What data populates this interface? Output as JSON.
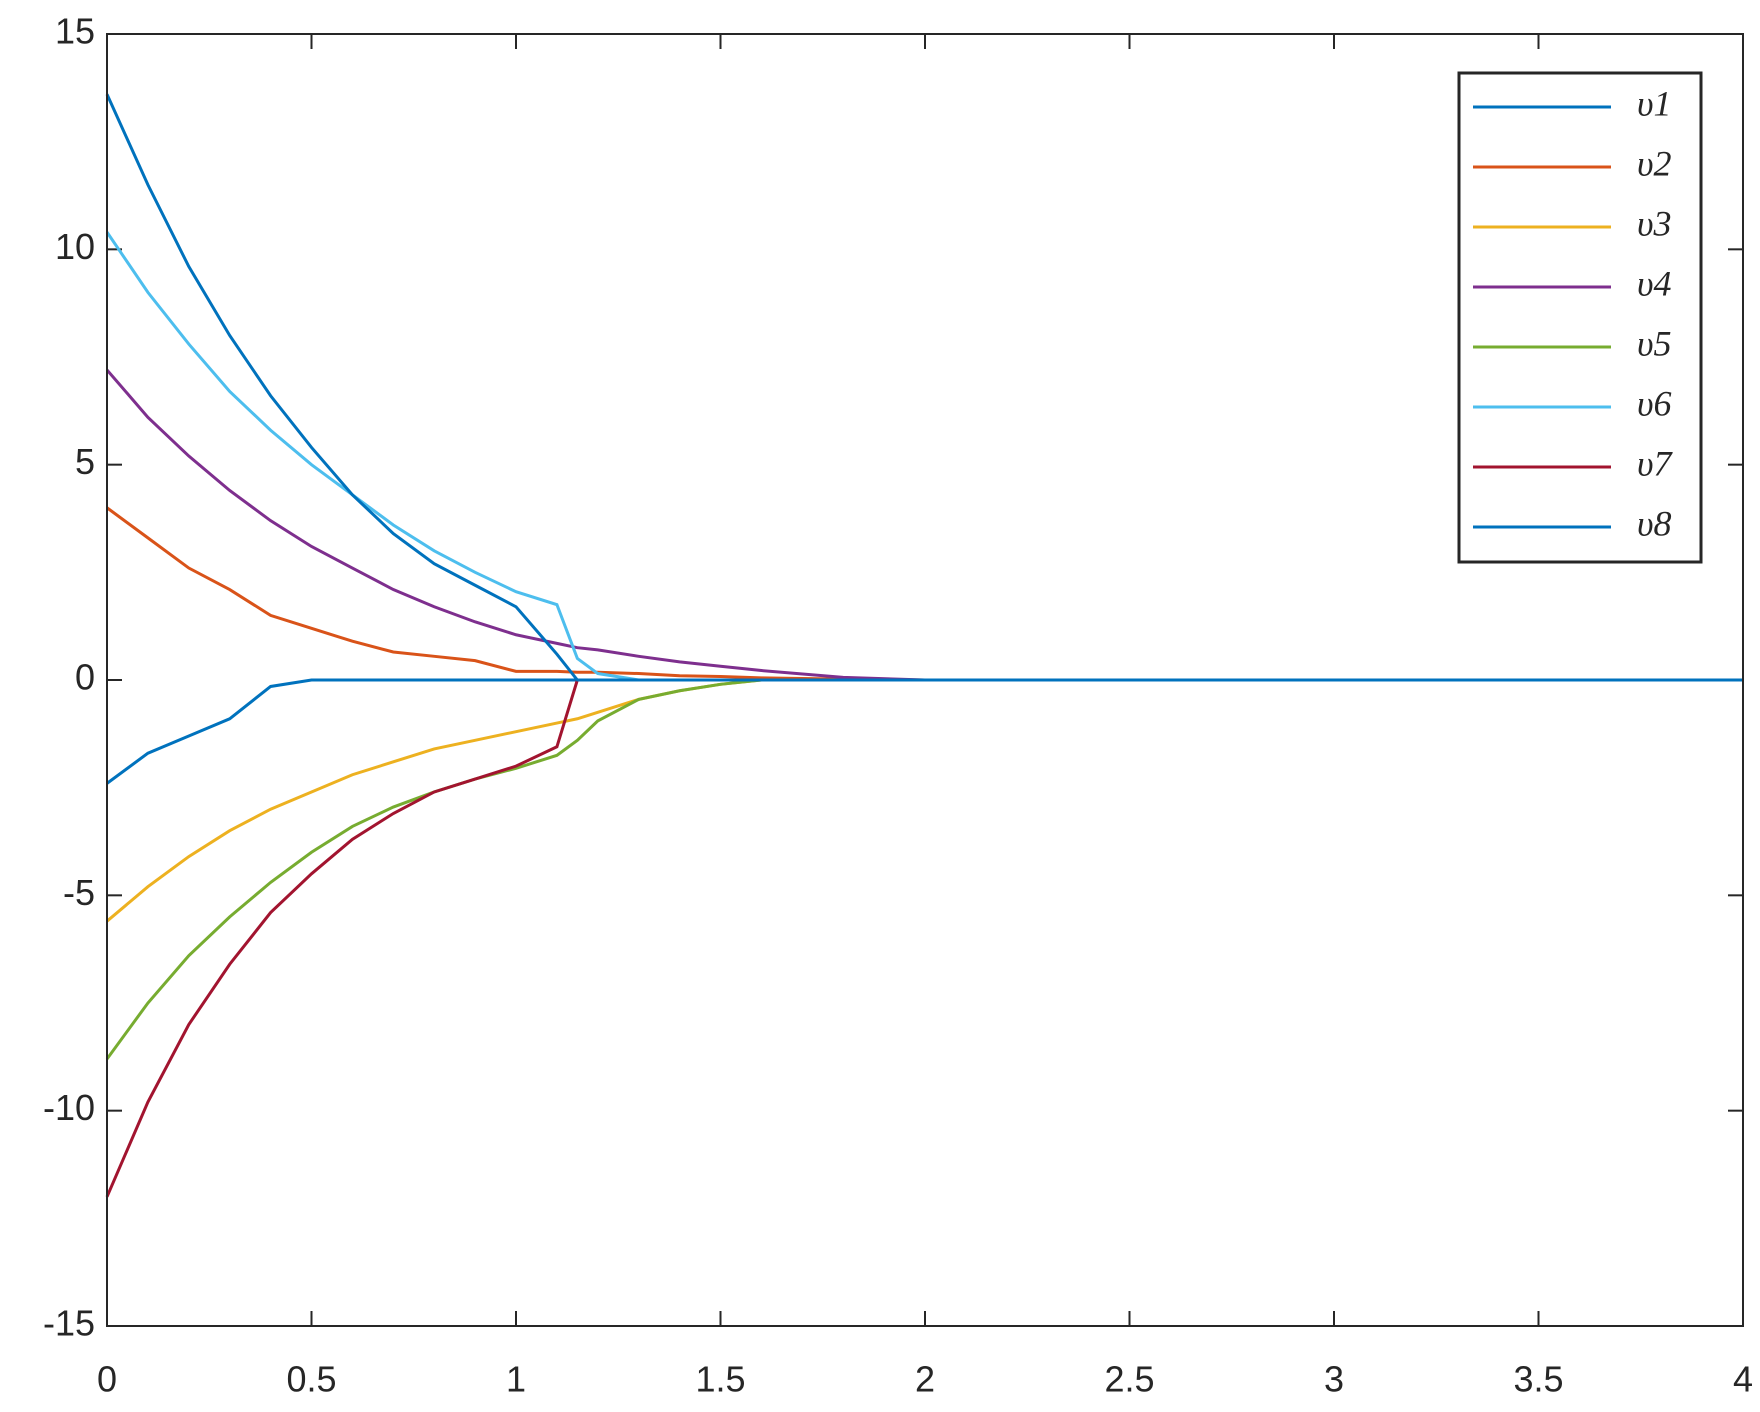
{
  "chart_data": {
    "type": "line",
    "x": [
      0,
      0.1,
      0.2,
      0.3,
      0.4,
      0.5,
      0.6,
      0.7,
      0.8,
      0.9,
      1.0,
      1.1,
      1.15,
      1.2,
      1.3,
      1.4,
      1.5,
      1.6,
      1.8,
      2,
      3,
      4
    ],
    "series": [
      {
        "name": "υ1",
        "color": "#0072BD",
        "values": [
          -2.4,
          -1.7,
          -1.3,
          -0.9,
          -0.15,
          0,
          0,
          0,
          0,
          0,
          0,
          0,
          0,
          0,
          0,
          0,
          0,
          0,
          0,
          0,
          0,
          0
        ]
      },
      {
        "name": "υ2",
        "color": "#D95319",
        "values": [
          4.0,
          3.3,
          2.6,
          2.1,
          1.5,
          1.2,
          0.9,
          0.65,
          0.55,
          0.45,
          0.2,
          0.2,
          0.18,
          0.18,
          0.15,
          0.1,
          0.08,
          0.05,
          0.02,
          0,
          0,
          0
        ]
      },
      {
        "name": "υ3",
        "color": "#EDB120",
        "values": [
          -5.6,
          -4.8,
          -4.1,
          -3.5,
          -3.0,
          -2.6,
          -2.2,
          -1.9,
          -1.6,
          -1.4,
          -1.2,
          -1.0,
          -0.9,
          -0.75,
          -0.45,
          -0.25,
          -0.1,
          0,
          0,
          0,
          0,
          0
        ]
      },
      {
        "name": "υ4",
        "color": "#7E2F8E",
        "values": [
          7.2,
          6.1,
          5.2,
          4.4,
          3.7,
          3.1,
          2.6,
          2.1,
          1.7,
          1.35,
          1.05,
          0.85,
          0.75,
          0.7,
          0.55,
          0.42,
          0.32,
          0.22,
          0.06,
          0,
          0,
          0
        ]
      },
      {
        "name": "υ5",
        "color": "#77AC30",
        "values": [
          -8.8,
          -7.5,
          -6.4,
          -5.5,
          -4.7,
          -4.0,
          -3.4,
          -2.95,
          -2.6,
          -2.3,
          -2.05,
          -1.75,
          -1.4,
          -0.95,
          -0.45,
          -0.25,
          -0.1,
          0,
          0,
          0,
          0,
          0
        ]
      },
      {
        "name": "υ6",
        "color": "#4DBEEE",
        "values": [
          10.4,
          9.0,
          7.8,
          6.7,
          5.8,
          5.0,
          4.3,
          3.6,
          3.0,
          2.5,
          2.05,
          1.75,
          0.5,
          0.15,
          0,
          0,
          0,
          0,
          0,
          0,
          0,
          0
        ]
      },
      {
        "name": "υ7",
        "color": "#A2142F",
        "values": [
          -12,
          -9.8,
          -8.0,
          -6.6,
          -5.4,
          -4.5,
          -3.7,
          -3.1,
          -2.6,
          -2.3,
          -2.0,
          -1.55,
          0,
          0,
          0,
          0,
          0,
          0,
          0,
          0,
          0,
          0
        ]
      },
      {
        "name": "υ8",
        "color": "#0072BD",
        "values": [
          13.6,
          11.5,
          9.6,
          8.0,
          6.6,
          5.4,
          4.3,
          3.4,
          2.7,
          2.2,
          1.7,
          0.6,
          0,
          0,
          0,
          0,
          0,
          0,
          0,
          0,
          0,
          0
        ]
      }
    ],
    "xlim": [
      0,
      4
    ],
    "xticks": [
      0,
      0.5,
      1,
      1.5,
      2,
      2.5,
      3,
      3.5,
      4
    ],
    "ylim": [
      -15,
      15
    ],
    "yticks": [
      -15,
      -10,
      -5,
      0,
      5,
      10,
      15
    ],
    "legend": "upper right"
  }
}
